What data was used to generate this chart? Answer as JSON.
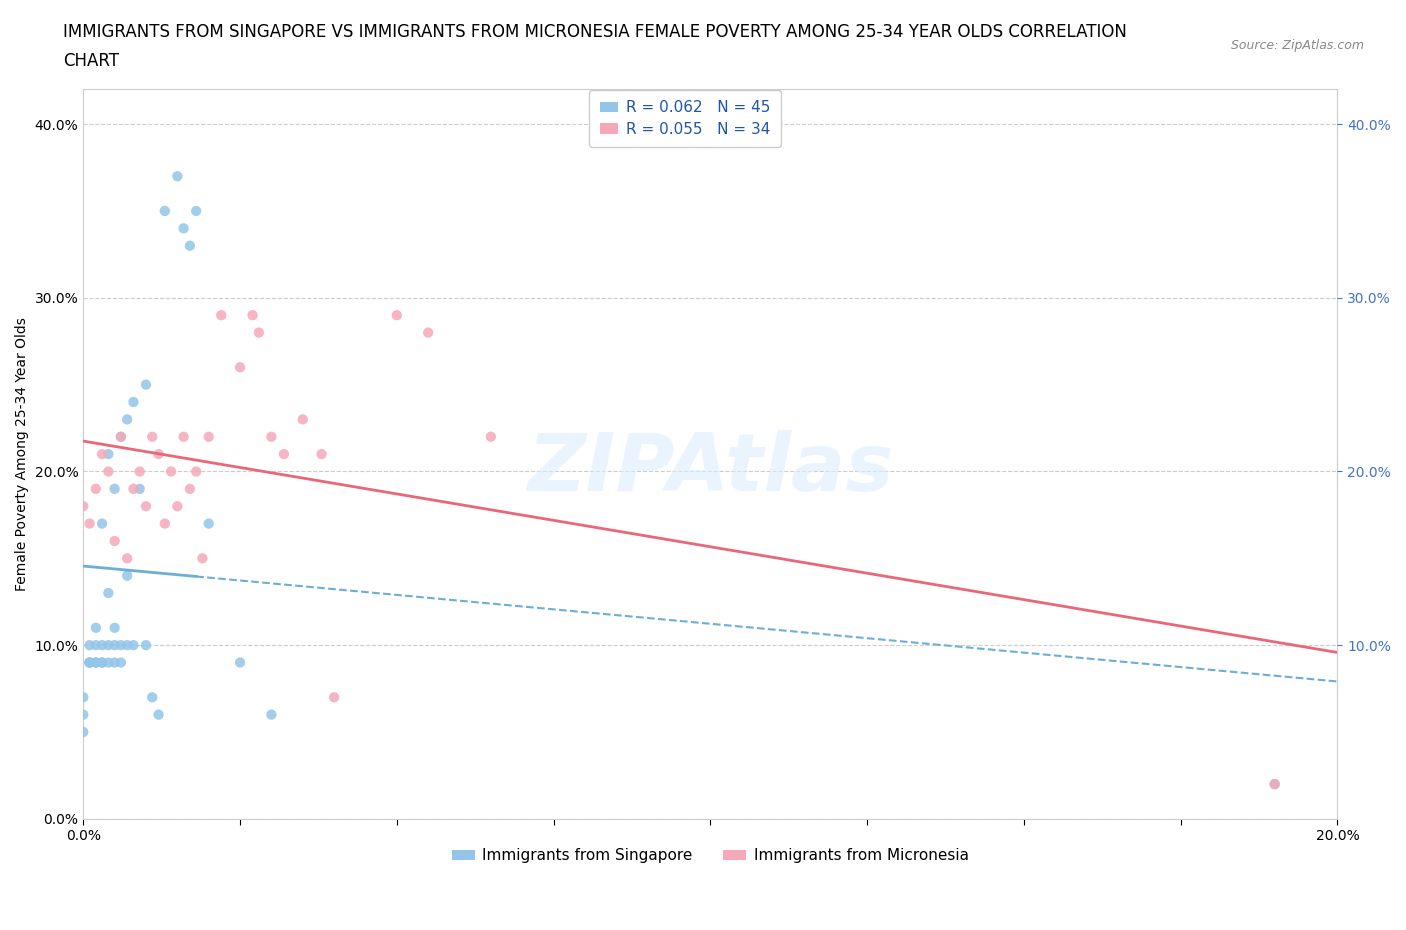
{
  "title_line1": "IMMIGRANTS FROM SINGAPORE VS IMMIGRANTS FROM MICRONESIA FEMALE POVERTY AMONG 25-34 YEAR OLDS CORRELATION",
  "title_line2": "CHART",
  "source_text": "Source: ZipAtlas.com",
  "ylabel": "Female Poverty Among 25-34 Year Olds",
  "legend_labels": [
    "Immigrants from Singapore",
    "Immigrants from Micronesia"
  ],
  "r_singapore": 0.062,
  "n_singapore": 45,
  "r_micronesia": 0.055,
  "n_micronesia": 34,
  "color_singapore": "#92C5E8",
  "color_micronesia": "#F4A8BA",
  "trend_color_singapore": "#6BAED6",
  "trend_color_micronesia": "#E8687A",
  "xlim": [
    0.0,
    0.2
  ],
  "ylim": [
    0.0,
    0.42
  ],
  "xticks": [
    0.0,
    0.025,
    0.05,
    0.075,
    0.1,
    0.125,
    0.15,
    0.175,
    0.2
  ],
  "yticks": [
    0.0,
    0.1,
    0.2,
    0.3,
    0.4
  ],
  "right_yticks": [
    0.1,
    0.2,
    0.3,
    0.4
  ],
  "singapore_x": [
    0.0,
    0.0,
    0.0,
    0.001,
    0.001,
    0.001,
    0.001,
    0.002,
    0.002,
    0.002,
    0.002,
    0.003,
    0.003,
    0.003,
    0.003,
    0.004,
    0.004,
    0.004,
    0.004,
    0.005,
    0.005,
    0.005,
    0.005,
    0.006,
    0.006,
    0.006,
    0.007,
    0.007,
    0.007,
    0.008,
    0.008,
    0.009,
    0.01,
    0.01,
    0.011,
    0.012,
    0.013,
    0.015,
    0.016,
    0.017,
    0.018,
    0.02,
    0.025,
    0.03,
    0.19
  ],
  "singapore_y": [
    0.05,
    0.06,
    0.07,
    0.09,
    0.09,
    0.09,
    0.1,
    0.09,
    0.09,
    0.1,
    0.11,
    0.09,
    0.09,
    0.1,
    0.17,
    0.09,
    0.1,
    0.13,
    0.21,
    0.09,
    0.1,
    0.11,
    0.19,
    0.09,
    0.1,
    0.22,
    0.1,
    0.14,
    0.23,
    0.1,
    0.24,
    0.19,
    0.1,
    0.25,
    0.07,
    0.06,
    0.35,
    0.37,
    0.34,
    0.33,
    0.35,
    0.17,
    0.09,
    0.06,
    0.02
  ],
  "micronesia_x": [
    0.0,
    0.001,
    0.002,
    0.003,
    0.004,
    0.005,
    0.006,
    0.007,
    0.008,
    0.009,
    0.01,
    0.011,
    0.012,
    0.013,
    0.014,
    0.015,
    0.016,
    0.017,
    0.018,
    0.019,
    0.02,
    0.022,
    0.025,
    0.027,
    0.028,
    0.03,
    0.032,
    0.035,
    0.038,
    0.04,
    0.05,
    0.055,
    0.065,
    0.19
  ],
  "micronesia_y": [
    0.18,
    0.17,
    0.19,
    0.21,
    0.2,
    0.16,
    0.22,
    0.15,
    0.19,
    0.2,
    0.18,
    0.22,
    0.21,
    0.17,
    0.2,
    0.18,
    0.22,
    0.19,
    0.2,
    0.15,
    0.22,
    0.29,
    0.26,
    0.29,
    0.28,
    0.22,
    0.21,
    0.23,
    0.21,
    0.07,
    0.29,
    0.28,
    0.22,
    0.02
  ],
  "watermark_text": "ZIPAtlas",
  "title_fontsize": 12,
  "label_fontsize": 10,
  "tick_fontsize": 10,
  "legend_fontsize": 11,
  "right_tick_color": "#4472C4",
  "legend_text_color": "#2255AA"
}
